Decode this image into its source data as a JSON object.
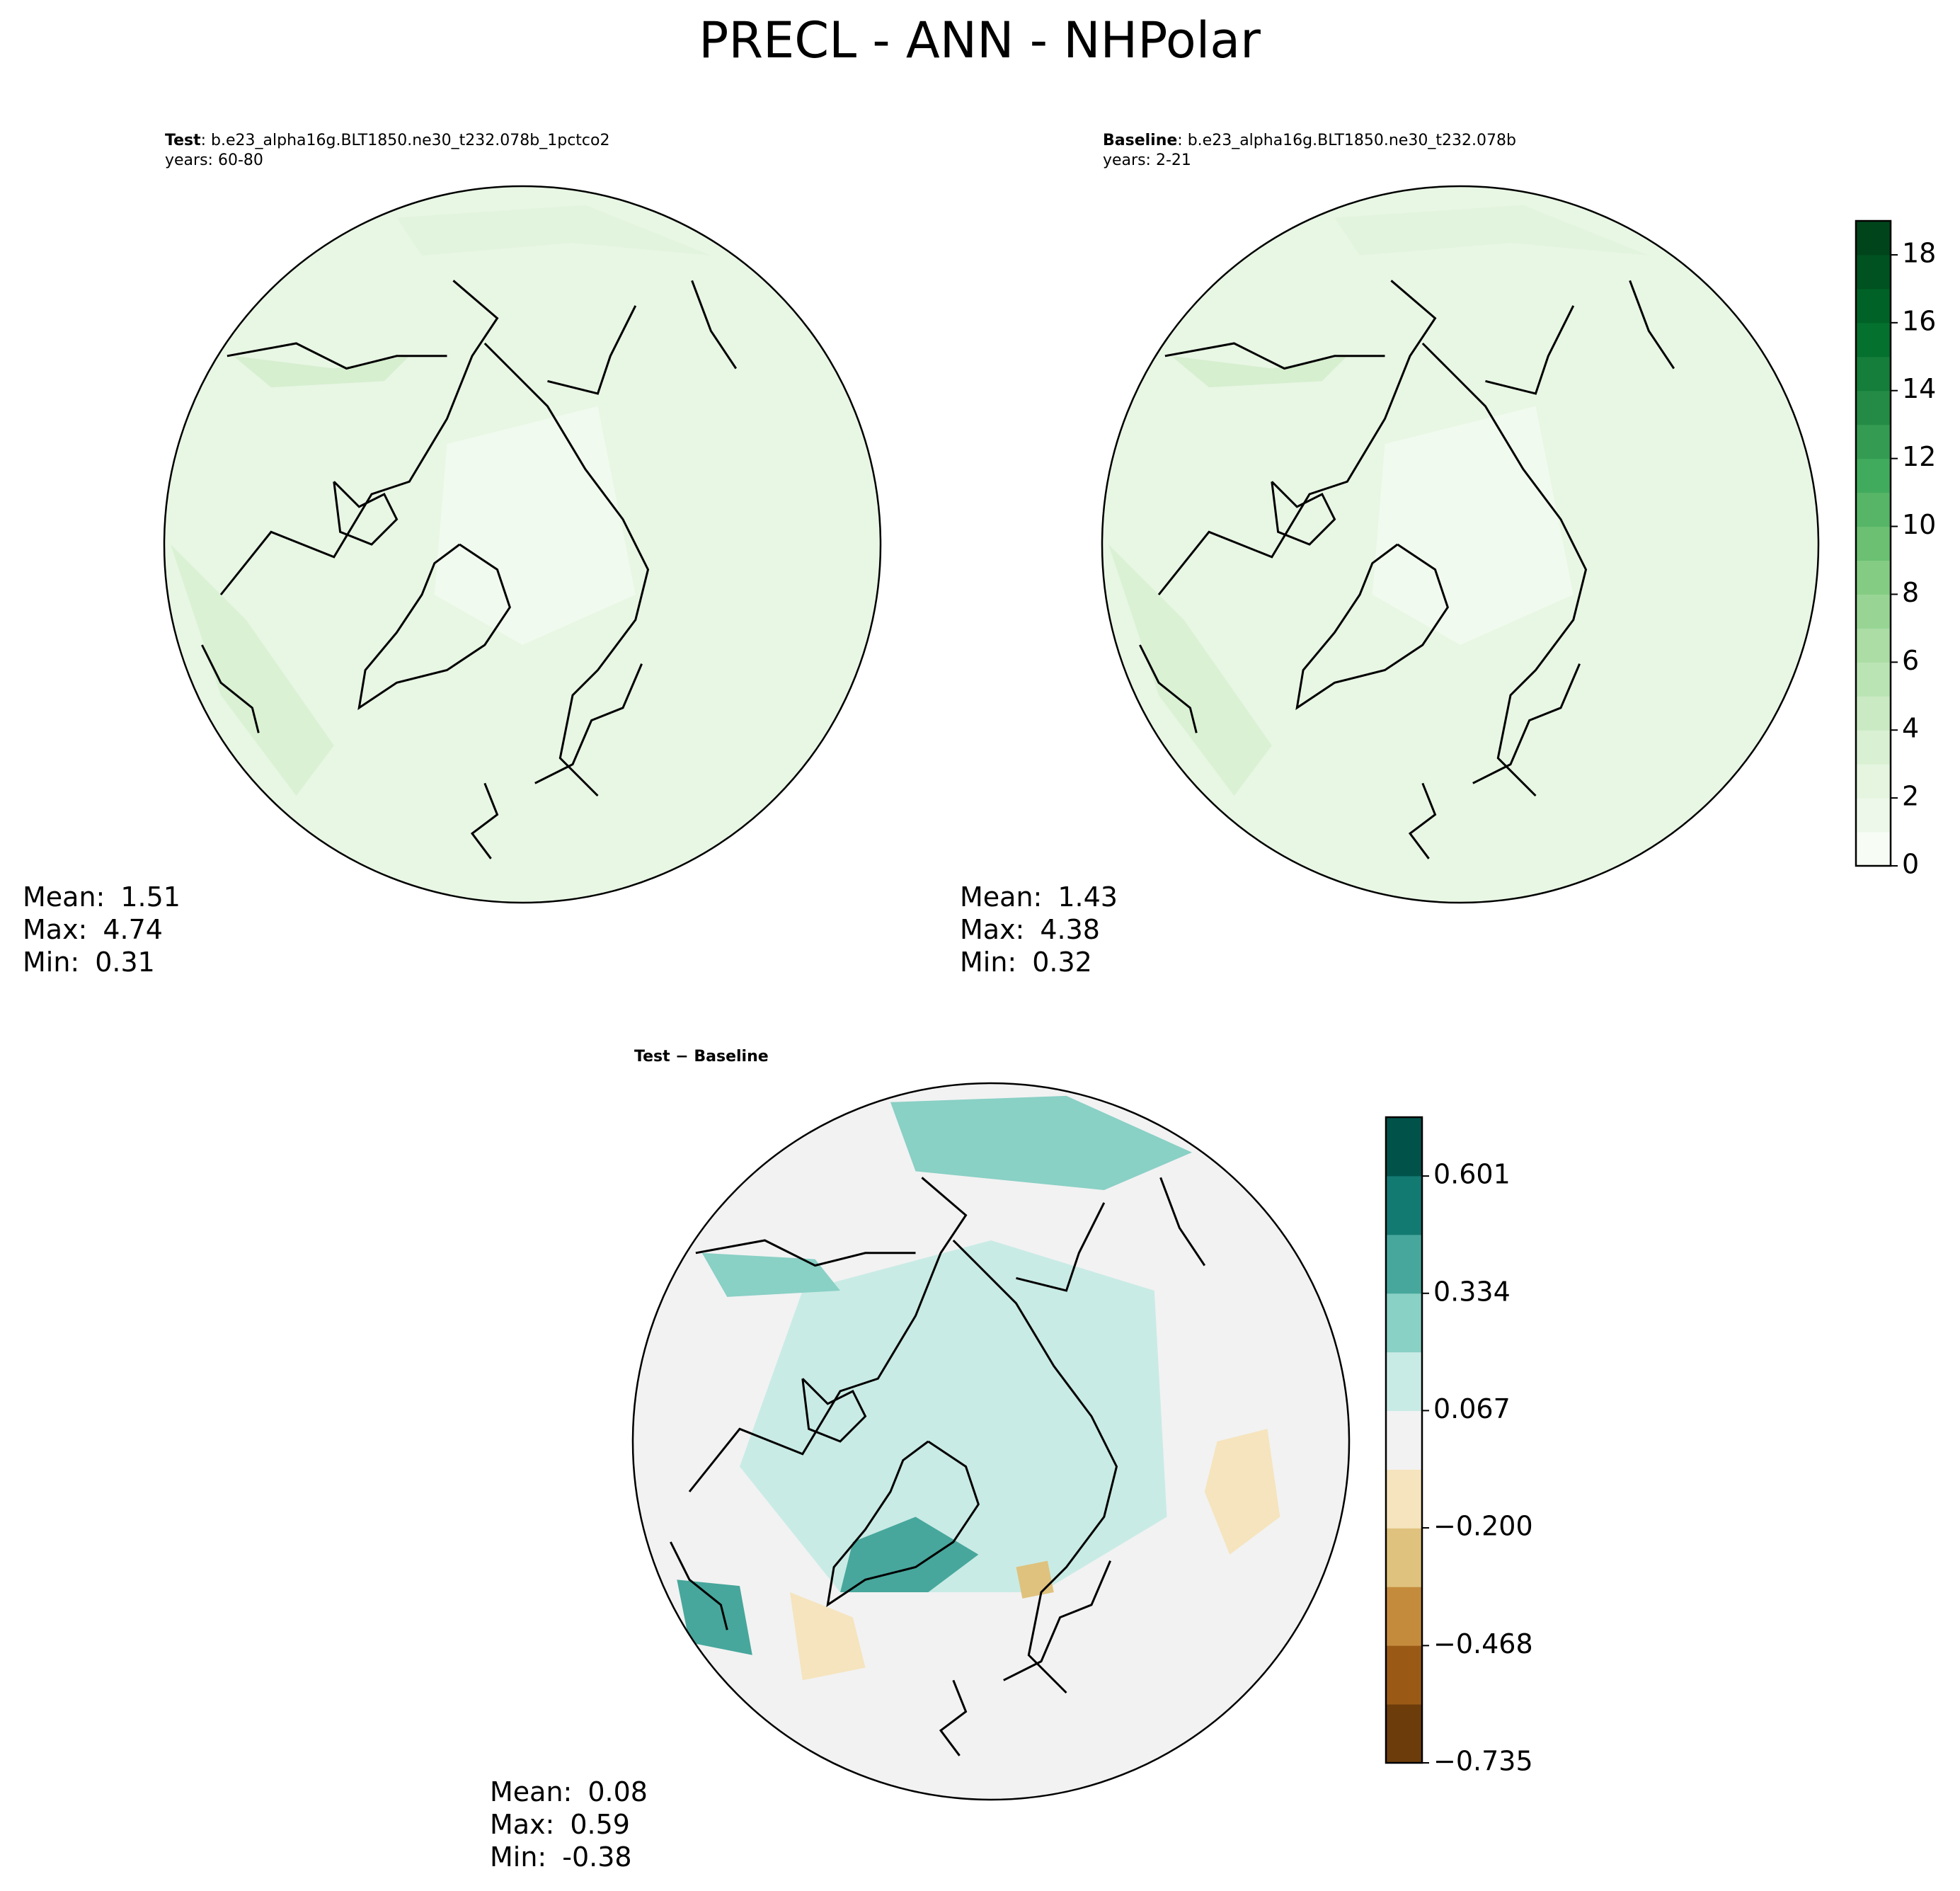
{
  "title": "PRECL - ANN - NHPolar",
  "panels": [
    {
      "label": "Test",
      "case": ": b.e23_alpha16g.BLT1850.ne30_t232.078b_1pctco2",
      "years": "years: 60-80",
      "stats": [
        {
          "label": "Mean:",
          "value": 1.51
        },
        {
          "label": "Max:",
          "value": 4.74
        },
        {
          "label": "Min:",
          "value": 0.31
        }
      ]
    },
    {
      "label": "Baseline",
      "case": ": b.e23_alpha16g.BLT1850.ne30_t232.078b",
      "years": "years: 2-21",
      "stats": [
        {
          "label": "Mean:",
          "value": 1.43
        },
        {
          "label": "Max:",
          "value": 4.38
        },
        {
          "label": "Min:",
          "value": 0.32
        }
      ]
    },
    {
      "label": "Test − Baseline",
      "stats": [
        {
          "label": "Mean:",
          "value": 0.08
        },
        {
          "label": "Max:",
          "value": 0.59
        },
        {
          "label": "Min:",
          "value": -0.38
        }
      ]
    }
  ],
  "colorbars": [
    {
      "lim": [
        0,
        19
      ],
      "ticks": [
        0,
        2,
        4,
        6,
        8,
        10,
        12,
        14,
        16,
        18
      ],
      "colors": [
        "#f7fcf5",
        "#eef8ea",
        "#e5f5e0",
        "#d9f0d3",
        "#caeac3",
        "#bbe4b4",
        "#abdda5",
        "#98d594",
        "#84cc83",
        "#6bc072",
        "#56b567",
        "#41ab5d",
        "#339c52",
        "#238b45",
        "#147e3a",
        "#05712f",
        "#006227",
        "#005221",
        "#00441b"
      ]
    },
    {
      "lim": [
        -0.735,
        0.735
      ],
      "ticks": [
        {
          "value": -0.735,
          "label": "−0.735"
        },
        {
          "value": -0.468,
          "label": "−0.468"
        },
        {
          "value": -0.2,
          "label": "−0.200"
        },
        0.067,
        0.334,
        0.601
      ],
      "colors": [
        "#6c3c0b",
        "#9a5a16",
        "#c58b3d",
        "#dfc27d",
        "#f5e4bd",
        "#f2f2f2",
        "#c9ebe5",
        "#89d0c5",
        "#47a79c",
        "#137a72",
        "#01534a"
      ]
    }
  ]
}
